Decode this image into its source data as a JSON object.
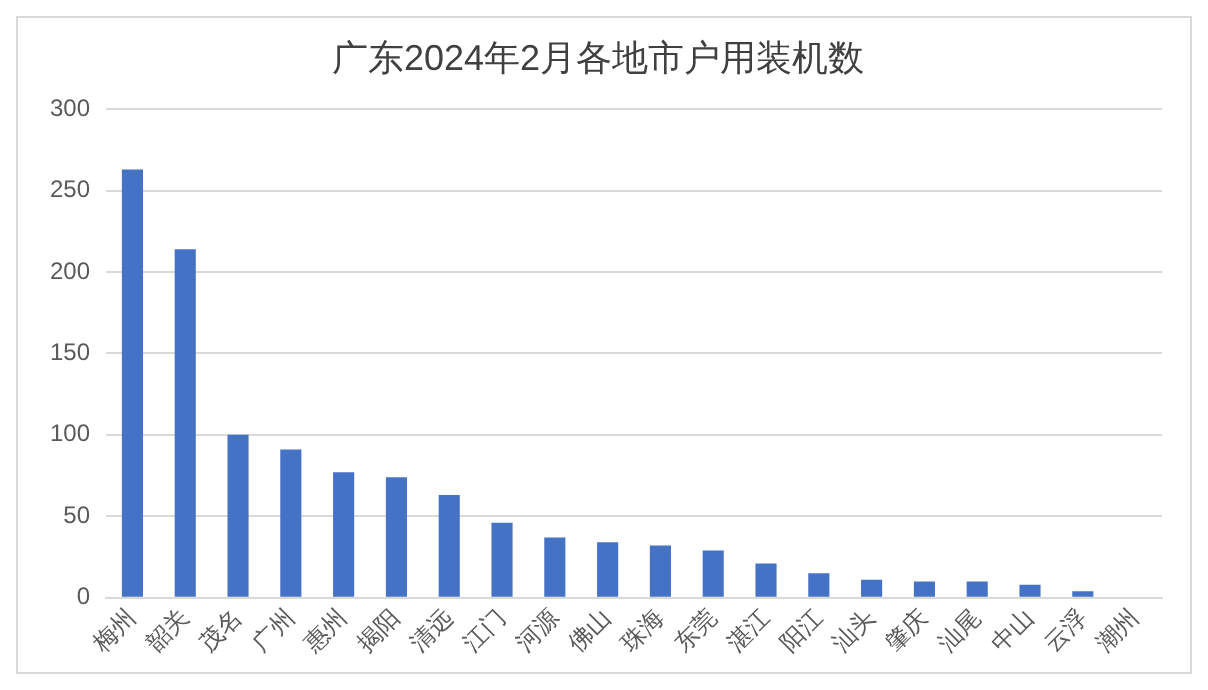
{
  "chart_data": {
    "type": "bar",
    "title": "广东2024年2月各地市户用装机数",
    "categories": [
      "梅州",
      "韶关",
      "茂名",
      "广州",
      "惠州",
      "揭阳",
      "清远",
      "江门",
      "河源",
      "佛山",
      "珠海",
      "东莞",
      "湛江",
      "阳江",
      "汕头",
      "肇庆",
      "汕尾",
      "中山",
      "云浮",
      "潮州"
    ],
    "values": [
      263,
      214,
      100,
      91,
      77,
      74,
      63,
      46,
      37,
      34,
      32,
      29,
      21,
      15,
      11,
      10,
      10,
      8,
      4,
      0
    ],
    "color": "#4472c4",
    "ylim": [
      0,
      300
    ],
    "yticks": [
      0,
      50,
      100,
      150,
      200,
      250,
      300
    ],
    "grid": "y",
    "legend": false
  }
}
